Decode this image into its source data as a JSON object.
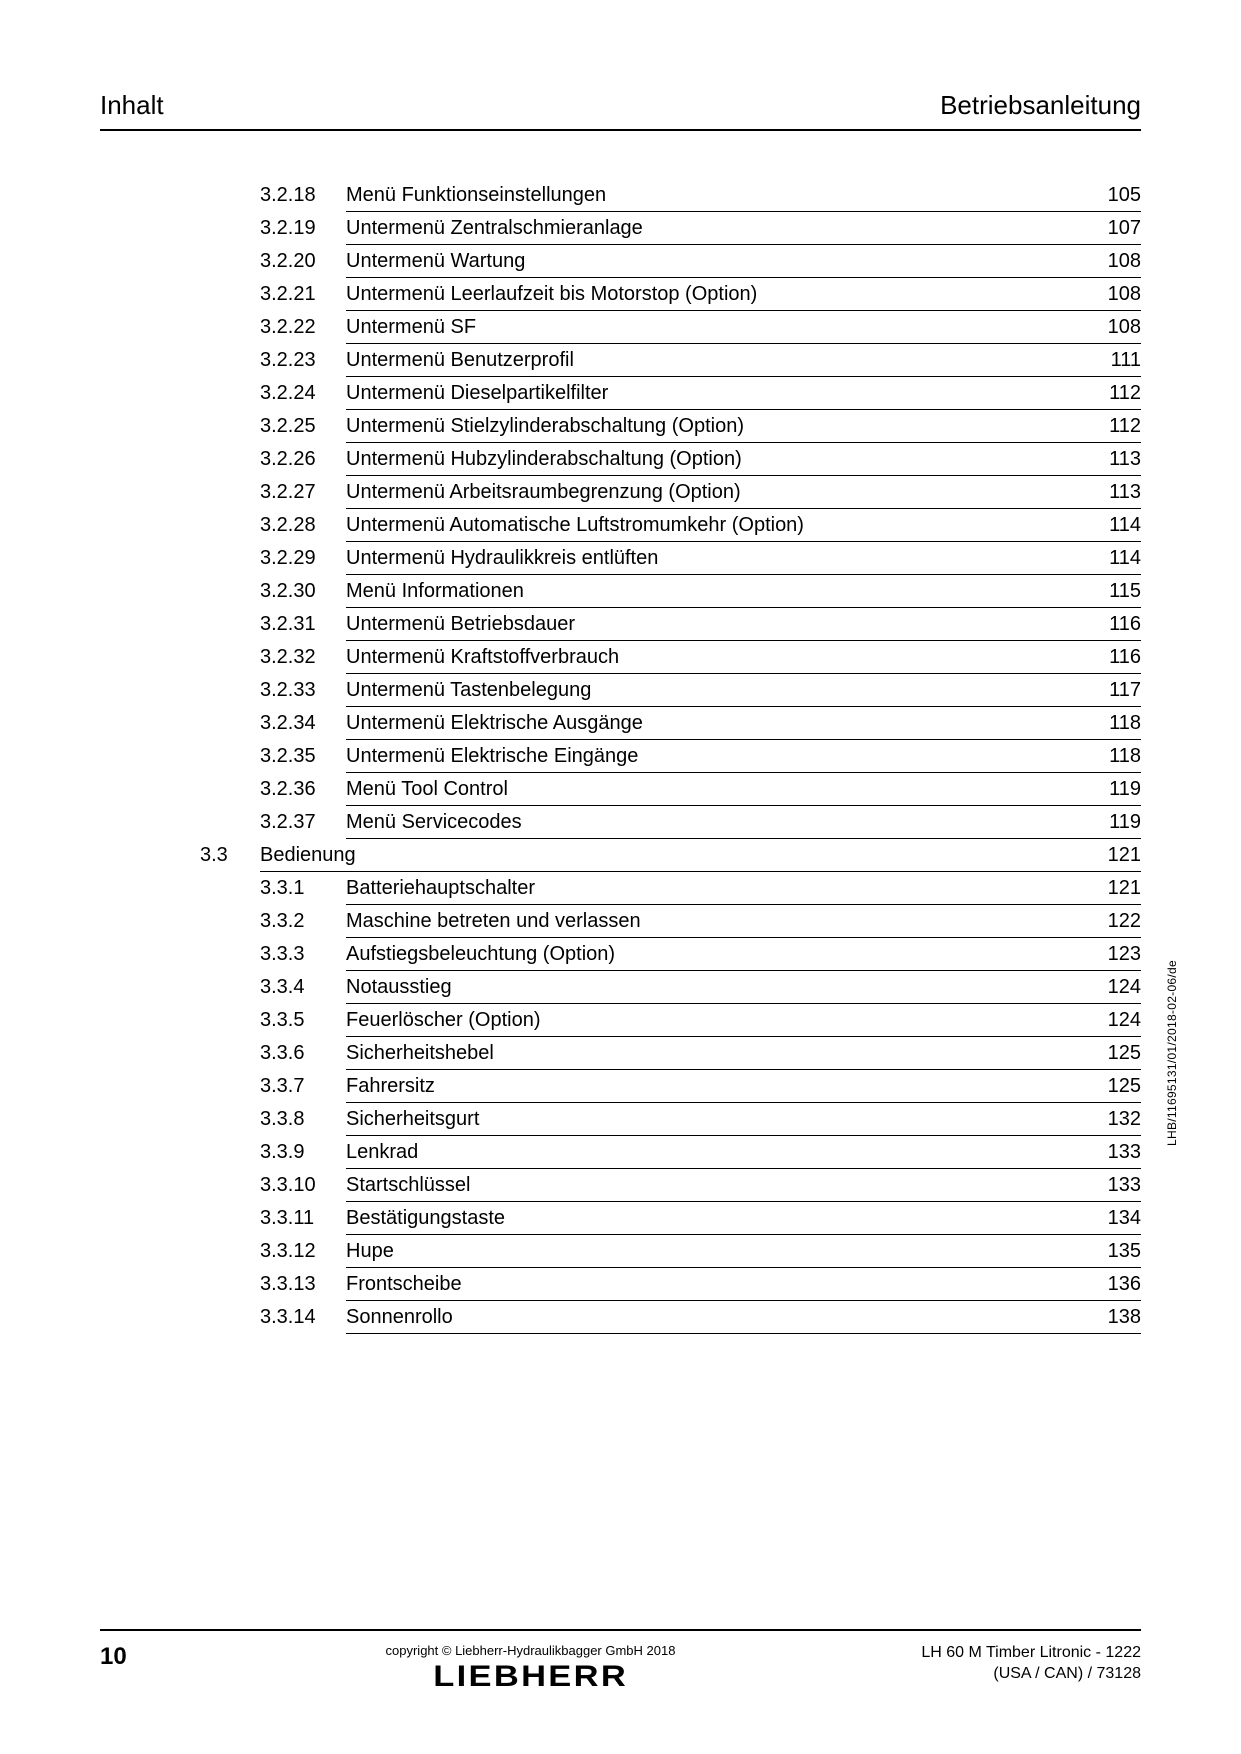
{
  "header": {
    "left": "Inhalt",
    "right": "Betriebsanleitung"
  },
  "sideText": "LHB/11695131/01/2018-02-06/de",
  "toc": [
    {
      "num": "3.2.18",
      "title": "Menü Funktionseinstellungen",
      "page": "105",
      "level": 2
    },
    {
      "num": "3.2.19",
      "title": "Untermenü Zentralschmieranlage",
      "page": "107",
      "level": 2
    },
    {
      "num": "3.2.20",
      "title": "Untermenü Wartung",
      "page": "108",
      "level": 2
    },
    {
      "num": "3.2.21",
      "title": "Untermenü Leerlaufzeit bis Motorstop (Option)",
      "page": "108",
      "level": 2
    },
    {
      "num": "3.2.22",
      "title": "Untermenü SF",
      "page": "108",
      "level": 2
    },
    {
      "num": "3.2.23",
      "title": "Untermenü Benutzerprofil",
      "page": "111",
      "level": 2
    },
    {
      "num": "3.2.24",
      "title": "Untermenü Dieselpartikelfilter",
      "page": "112",
      "level": 2
    },
    {
      "num": "3.2.25",
      "title": "Untermenü Stielzylinderabschaltung (Option)",
      "page": "112",
      "level": 2
    },
    {
      "num": "3.2.26",
      "title": "Untermenü Hubzylinderabschaltung (Option)",
      "page": "113",
      "level": 2
    },
    {
      "num": "3.2.27",
      "title": "Untermenü Arbeitsraumbegrenzung (Option)",
      "page": "113",
      "level": 2
    },
    {
      "num": "3.2.28",
      "title": "Untermenü Automatische Luftstromumkehr (Option)",
      "page": "114",
      "level": 2
    },
    {
      "num": "3.2.29",
      "title": "Untermenü Hydraulikkreis entlüften",
      "page": "114",
      "level": 2
    },
    {
      "num": "3.2.30",
      "title": "Menü Informationen",
      "page": "115",
      "level": 2
    },
    {
      "num": "3.2.31",
      "title": "Untermenü Betriebsdauer",
      "page": "116",
      "level": 2
    },
    {
      "num": "3.2.32",
      "title": "Untermenü Kraftstoffverbrauch",
      "page": "116",
      "level": 2
    },
    {
      "num": "3.2.33",
      "title": "Untermenü Tastenbelegung",
      "page": "117",
      "level": 2
    },
    {
      "num": "3.2.34",
      "title": "Untermenü Elektrische Ausgänge",
      "page": "118",
      "level": 2
    },
    {
      "num": "3.2.35",
      "title": "Untermenü Elektrische Eingänge",
      "page": "118",
      "level": 2
    },
    {
      "num": "3.2.36",
      "title": "Menü Tool Control",
      "page": "119",
      "level": 2
    },
    {
      "num": "3.2.37",
      "title": "Menü Servicecodes",
      "page": "119",
      "level": 2
    },
    {
      "num": "3.3",
      "title": "Bedienung",
      "page": "121",
      "level": 1
    },
    {
      "num": "3.3.1",
      "title": "Batteriehauptschalter",
      "page": "121",
      "level": 2
    },
    {
      "num": "3.3.2",
      "title": "Maschine betreten und verlassen",
      "page": "122",
      "level": 2
    },
    {
      "num": "3.3.3",
      "title": "Aufstiegsbeleuchtung (Option)",
      "page": "123",
      "level": 2
    },
    {
      "num": "3.3.4",
      "title": "Notausstieg",
      "page": "124",
      "level": 2
    },
    {
      "num": "3.3.5",
      "title": "Feuerlöscher (Option)",
      "page": "124",
      "level": 2
    },
    {
      "num": "3.3.6",
      "title": "Sicherheitshebel",
      "page": "125",
      "level": 2
    },
    {
      "num": "3.3.7",
      "title": "Fahrersitz",
      "page": "125",
      "level": 2
    },
    {
      "num": "3.3.8",
      "title": "Sicherheitsgurt",
      "page": "132",
      "level": 2
    },
    {
      "num": "3.3.9",
      "title": "Lenkrad",
      "page": "133",
      "level": 2
    },
    {
      "num": "3.3.10",
      "title": "Startschlüssel",
      "page": "133",
      "level": 2
    },
    {
      "num": "3.3.11",
      "title": "Bestätigungstaste",
      "page": "134",
      "level": 2
    },
    {
      "num": "3.3.12",
      "title": "Hupe",
      "page": "135",
      "level": 2
    },
    {
      "num": "3.3.13",
      "title": "Frontscheibe",
      "page": "136",
      "level": 2
    },
    {
      "num": "3.3.14",
      "title": "Sonnenrollo",
      "page": "138",
      "level": 2
    }
  ],
  "footer": {
    "pageNumber": "10",
    "copyright": "copyright © Liebherr-Hydraulikbagger GmbH 2018",
    "logo": "LIEBHERR",
    "rightLine1": "LH 60 M Timber Litronic  - 1222",
    "rightLine2": "(USA / CAN) / 73128"
  }
}
